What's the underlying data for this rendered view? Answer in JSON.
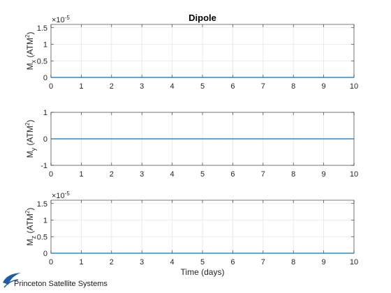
{
  "chart_data": [
    {
      "type": "line",
      "title": "Dipole",
      "ylabel_main": "M",
      "ylabel_sub": "x",
      "ylabel_units": " (ATM",
      "ylabel_exp": "2",
      "ylabel_close": ")",
      "xlabel": "",
      "x_ticks": [
        "0",
        "1",
        "2",
        "3",
        "4",
        "5",
        "6",
        "7",
        "8",
        "9",
        "10"
      ],
      "y_ticks": [
        0,
        0.5,
        1,
        1.5
      ],
      "y_tick_labels": [
        "0",
        "0.5",
        "1",
        "1.5"
      ],
      "ylim": [
        0,
        1.6
      ],
      "xlim": [
        0,
        10
      ],
      "exponent_prefix": "×10",
      "exponent_value": "-5",
      "grid": true,
      "series": [
        {
          "x": [
            0,
            10
          ],
          "y": [
            0,
            0
          ],
          "color": "#0072BD"
        }
      ]
    },
    {
      "type": "line",
      "title": "",
      "ylabel_main": "M",
      "ylabel_sub": "y",
      "ylabel_units": " (ATM",
      "ylabel_exp": "2",
      "ylabel_close": ")",
      "xlabel": "",
      "x_ticks": [
        "0",
        "1",
        "2",
        "3",
        "4",
        "5",
        "6",
        "7",
        "8",
        "9",
        "10"
      ],
      "y_ticks": [
        -1,
        0,
        1
      ],
      "y_tick_labels": [
        "-1",
        "0",
        "1"
      ],
      "ylim": [
        -1,
        1
      ],
      "xlim": [
        0,
        10
      ],
      "exponent_prefix": "",
      "exponent_value": "",
      "grid": true,
      "series": [
        {
          "x": [
            0,
            10
          ],
          "y": [
            0,
            0
          ],
          "color": "#0072BD"
        }
      ]
    },
    {
      "type": "line",
      "title": "",
      "ylabel_main": "M",
      "ylabel_sub": "z",
      "ylabel_units": " (ATM",
      "ylabel_exp": "2",
      "ylabel_close": ")",
      "xlabel": "Time (days)",
      "x_ticks": [
        "0",
        "1",
        "2",
        "3",
        "4",
        "5",
        "6",
        "7",
        "8",
        "9",
        "10"
      ],
      "y_ticks": [
        0,
        0.5,
        1,
        1.5
      ],
      "y_tick_labels": [
        "0",
        "0.5",
        "1",
        "1.5"
      ],
      "ylim": [
        0,
        1.6
      ],
      "xlim": [
        0,
        10
      ],
      "exponent_prefix": "×10",
      "exponent_value": "-5",
      "grid": true,
      "series": [
        {
          "x": [
            0,
            10
          ],
          "y": [
            0,
            0
          ],
          "color": "#0072BD"
        }
      ]
    }
  ],
  "logo": {
    "text": "Princeton Satellite Systems",
    "color": "#1f5aa6"
  }
}
